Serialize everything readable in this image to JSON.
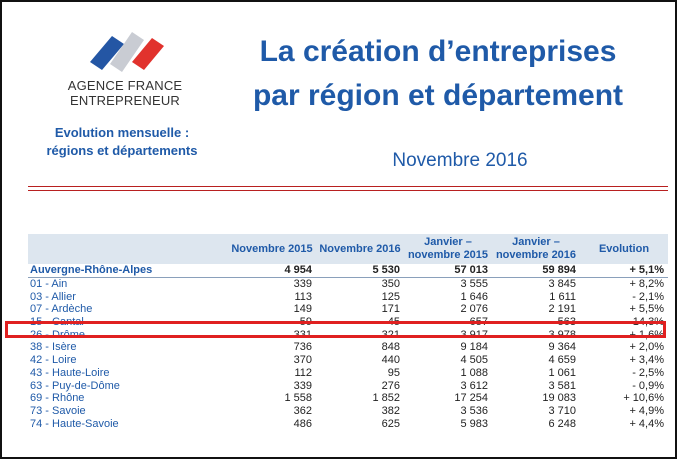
{
  "logo": {
    "line1": "AGENCE FRANCE",
    "line2": "ENTREPRENEUR"
  },
  "subtitle": {
    "line1": "Evolution mensuelle :",
    "line2": "régions et départements"
  },
  "title": {
    "line1": "La création d’entreprises",
    "line2": "par région et département"
  },
  "month": "Novembre 2016",
  "colors": {
    "accent": "#1f5aa8",
    "rule": "#b82020",
    "highlight": "#e02020",
    "header_bg": "#dde6ef"
  },
  "table": {
    "headers": [
      "",
      "Novembre 2015",
      "Novembre 2016",
      "Janvier – novembre 2015",
      "Janvier – novembre 2016",
      "Evolution"
    ],
    "region": {
      "name": "Auvergne-Rhône-Alpes",
      "cells": [
        "4 954",
        "5 530",
        "57 013",
        "59 894",
        "+ 5,1%"
      ]
    },
    "rows": [
      {
        "name": "01 - Ain",
        "cells": [
          "339",
          "350",
          "3 555",
          "3 845",
          "+ 8,2%"
        ]
      },
      {
        "name": "03 - Allier",
        "cells": [
          "113",
          "125",
          "1 646",
          "1 611",
          "- 2,1%"
        ]
      },
      {
        "name": "07 - Ardèche",
        "cells": [
          "149",
          "171",
          "2 076",
          "2 191",
          "+ 5,5%"
        ]
      },
      {
        "name": "15 - Cantal",
        "cells": [
          "59",
          "45",
          "657",
          "563",
          "- 14,3%"
        ]
      },
      {
        "name": "26 - Drôme",
        "cells": [
          "331",
          "321",
          "3 917",
          "3 978",
          "+ 1,6%"
        ]
      },
      {
        "name": "38 - Isère",
        "cells": [
          "736",
          "848",
          "9 184",
          "9 364",
          "+ 2,0%"
        ]
      },
      {
        "name": "42 - Loire",
        "cells": [
          "370",
          "440",
          "4 505",
          "4 659",
          "+ 3,4%"
        ]
      },
      {
        "name": "43 - Haute-Loire",
        "cells": [
          "112",
          "95",
          "1 088",
          "1 061",
          "- 2,5%"
        ]
      },
      {
        "name": "63 - Puy-de-Dôme",
        "cells": [
          "339",
          "276",
          "3 612",
          "3 581",
          "- 0,9%"
        ]
      },
      {
        "name": "69 - Rhône",
        "cells": [
          "1 558",
          "1 852",
          "17 254",
          "19 083",
          "+ 10,6%"
        ]
      },
      {
        "name": "73 - Savoie",
        "cells": [
          "362",
          "382",
          "3 536",
          "3 710",
          "+ 4,9%"
        ]
      },
      {
        "name": "74 - Haute-Savoie",
        "cells": [
          "486",
          "625",
          "5 983",
          "6 248",
          "+ 4,4%"
        ]
      }
    ]
  }
}
